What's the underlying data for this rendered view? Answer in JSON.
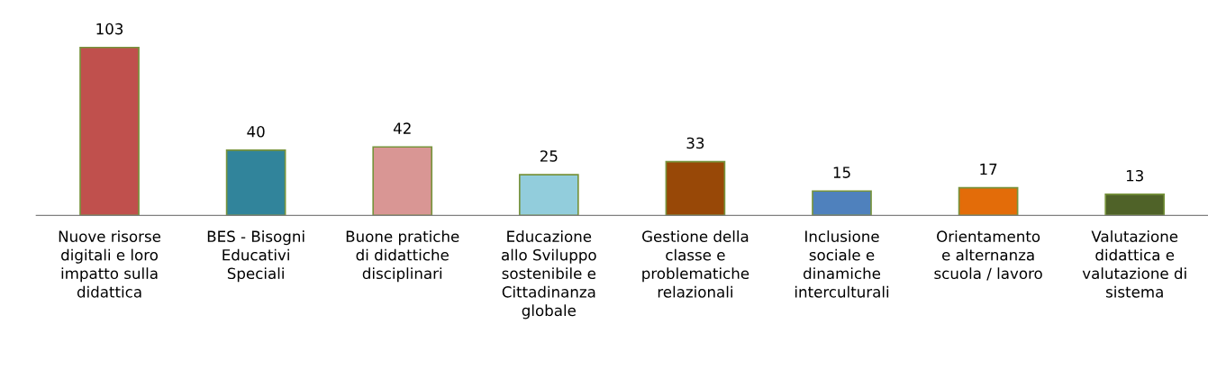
{
  "chart_data": {
    "type": "bar",
    "categories": [
      "Nuove risorse\ndigitali e loro\nimpatto sulla\ndidattica",
      "BES - Bisogni\nEducativi\nSpeciali",
      "Buone pratiche\ndi didattiche\ndisciplinari",
      "Educazione\nallo Sviluppo\nsostenibile e\nCittadinanza\nglobale",
      "Gestione della\nclasse e\nproblematiche\nrelazionali",
      "Inclusione\nsociale e\ndinamiche\ninterculturali",
      "Orientamento\ne alternanza\nscuola / lavoro",
      "Valutazione\ndidattica e\nvalutazione di\nsistema"
    ],
    "values": [
      103,
      40,
      42,
      25,
      33,
      15,
      17,
      13
    ],
    "colors": [
      "#c0504d",
      "#31849b",
      "#d99694",
      "#92cddc",
      "#984807",
      "#4f81bd",
      "#e36c09",
      "#4f6228"
    ],
    "data_labels": true,
    "grid": false,
    "legend": false
  }
}
